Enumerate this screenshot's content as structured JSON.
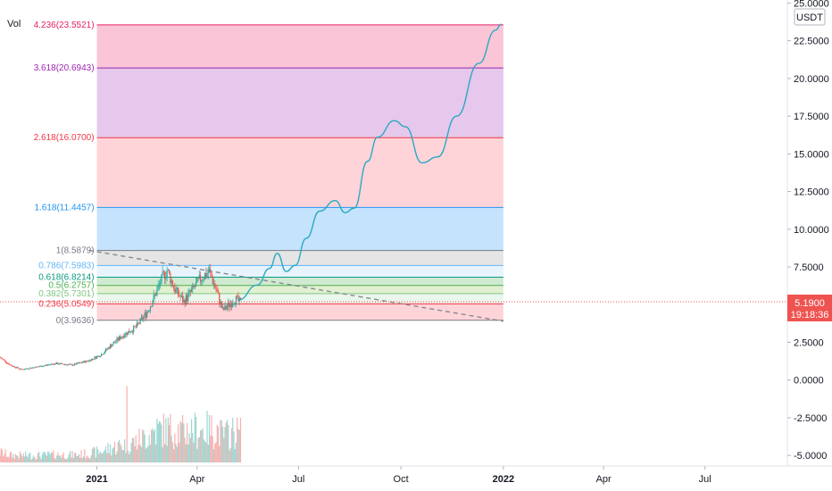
{
  "indicator_label": "Vol",
  "currency_badge": "USDT",
  "last_price": "5.1900",
  "countdown": "19:18:36",
  "colors": {
    "up": "#26a69a",
    "down": "#ef5350",
    "trend_line": "#868993",
    "projection": "#2aa8c4",
    "price_line": "#ef5350",
    "axis_text": "#131722"
  },
  "chart_data": {
    "type": "candlestick",
    "y_axis": {
      "range": [
        -5.7,
        25.2
      ],
      "ticks": [
        "25.0000",
        "22.5000",
        "20.0000",
        "17.5000",
        "15.0000",
        "12.5000",
        "10.0000",
        "7.5000",
        "2.5000",
        "0.0000",
        "-2.5000",
        "-5.0000"
      ]
    },
    "x_axis": {
      "range": [
        "2020-10-06",
        "2022-09-13"
      ],
      "ticks": [
        {
          "label": "2021",
          "date": "2021-01-01",
          "bold": true
        },
        {
          "label": "Apr",
          "date": "2021-04-01",
          "bold": false
        },
        {
          "label": "Jul",
          "date": "2021-07-01",
          "bold": false
        },
        {
          "label": "Oct",
          "date": "2021-10-01",
          "bold": false
        },
        {
          "label": "2022",
          "date": "2022-01-01",
          "bold": true
        },
        {
          "label": "Apr",
          "date": "2022-04-01",
          "bold": false
        },
        {
          "label": "Jul",
          "date": "2022-07-01",
          "bold": false
        }
      ]
    },
    "price_path": [
      {
        "date": "2020-10-06",
        "price": 1.5
      },
      {
        "date": "2020-10-15",
        "price": 1.0
      },
      {
        "date": "2020-10-25",
        "price": 0.7
      },
      {
        "date": "2020-11-10",
        "price": 0.9
      },
      {
        "date": "2020-11-25",
        "price": 1.1
      },
      {
        "date": "2020-12-10",
        "price": 1.0
      },
      {
        "date": "2020-12-25",
        "price": 1.3
      },
      {
        "date": "2021-01-05",
        "price": 1.7
      },
      {
        "date": "2021-01-15",
        "price": 2.4
      },
      {
        "date": "2021-01-25",
        "price": 3.0
      },
      {
        "date": "2021-02-05",
        "price": 3.5
      },
      {
        "date": "2021-02-15",
        "price": 4.5
      },
      {
        "date": "2021-02-22",
        "price": 5.6
      },
      {
        "date": "2021-03-01",
        "price": 6.8
      },
      {
        "date": "2021-03-05",
        "price": 7.3
      },
      {
        "date": "2021-03-12",
        "price": 6.0
      },
      {
        "date": "2021-03-20",
        "price": 5.2
      },
      {
        "date": "2021-03-28",
        "price": 6.0
      },
      {
        "date": "2021-04-05",
        "price": 6.8
      },
      {
        "date": "2021-04-12",
        "price": 7.2
      },
      {
        "date": "2021-04-18",
        "price": 6.0
      },
      {
        "date": "2021-04-24",
        "price": 4.6
      },
      {
        "date": "2021-04-30",
        "price": 5.0
      },
      {
        "date": "2021-05-05",
        "price": 5.4
      },
      {
        "date": "2021-05-10",
        "price": 5.1
      }
    ],
    "volume_range": [
      0,
      21
    ],
    "volume_note": "volume bars at bottom; max around late Jan 2021",
    "fibonacci": {
      "start_date": "2021-01-01",
      "end_date": "2022-01-01",
      "levels": [
        {
          "label": "4.236(23.5521)",
          "value": 23.5521,
          "color": "#e91e63",
          "fill": "#f8bbd0"
        },
        {
          "label": "3.618(20.6943)",
          "value": 20.6943,
          "color": "#9c27b0",
          "fill": "#e1bee7"
        },
        {
          "label": "2.618(16.0700)",
          "value": 16.07,
          "color": "#f23645",
          "fill": "#ffcdd2"
        },
        {
          "label": "1.618(11.4457)",
          "value": 11.4457,
          "color": "#2196f3",
          "fill": "#bbdefb"
        },
        {
          "label": "1(8.5879)",
          "value": 8.5879,
          "color": "#787b86",
          "fill": "#e0e0e0"
        },
        {
          "label": "0.786(7.5983)",
          "value": 7.5983,
          "color": "#64b5f6",
          "fill": "#e3f2fd"
        },
        {
          "label": "0.618(6.8214)",
          "value": 6.8214,
          "color": "#089981",
          "fill": "#c8e6c9"
        },
        {
          "label": "0.5(6.2757)",
          "value": 6.2757,
          "color": "#4caf50",
          "fill": "#dcedc8"
        },
        {
          "label": "0.382(5.7301)",
          "value": 5.7301,
          "color": "#81c784",
          "fill": "#e8f5e9"
        },
        {
          "label": "0.236(5.0549)",
          "value": 5.0549,
          "color": "#f23645",
          "fill": "#ffcdd2"
        },
        {
          "label": "0(3.9636)",
          "value": 3.9636,
          "color": "#787b86",
          "fill": "#ffcdd2"
        }
      ]
    },
    "trend_line": {
      "from": {
        "date": "2020-12-25",
        "price": 8.6
      },
      "to": {
        "date": "2022-01-01",
        "price": 3.9
      }
    },
    "projection_path": [
      {
        "date": "2021-05-08",
        "price": 5.3
      },
      {
        "date": "2021-05-25",
        "price": 6.3
      },
      {
        "date": "2021-06-05",
        "price": 7.4
      },
      {
        "date": "2021-06-12",
        "price": 8.4
      },
      {
        "date": "2021-06-20",
        "price": 7.2
      },
      {
        "date": "2021-06-28",
        "price": 7.6
      },
      {
        "date": "2021-07-08",
        "price": 9.4
      },
      {
        "date": "2021-07-20",
        "price": 11.2
      },
      {
        "date": "2021-08-03",
        "price": 11.9
      },
      {
        "date": "2021-08-12",
        "price": 11.1
      },
      {
        "date": "2021-08-20",
        "price": 11.4
      },
      {
        "date": "2021-09-01",
        "price": 14.5
      },
      {
        "date": "2021-09-10",
        "price": 16.1
      },
      {
        "date": "2021-09-25",
        "price": 17.2
      },
      {
        "date": "2021-10-05",
        "price": 16.8
      },
      {
        "date": "2021-10-20",
        "price": 14.4
      },
      {
        "date": "2021-11-03",
        "price": 14.8
      },
      {
        "date": "2021-11-20",
        "price": 17.5
      },
      {
        "date": "2021-12-10",
        "price": 21.0
      },
      {
        "date": "2021-12-25",
        "price": 23.2
      },
      {
        "date": "2021-12-30",
        "price": 23.6
      }
    ]
  }
}
